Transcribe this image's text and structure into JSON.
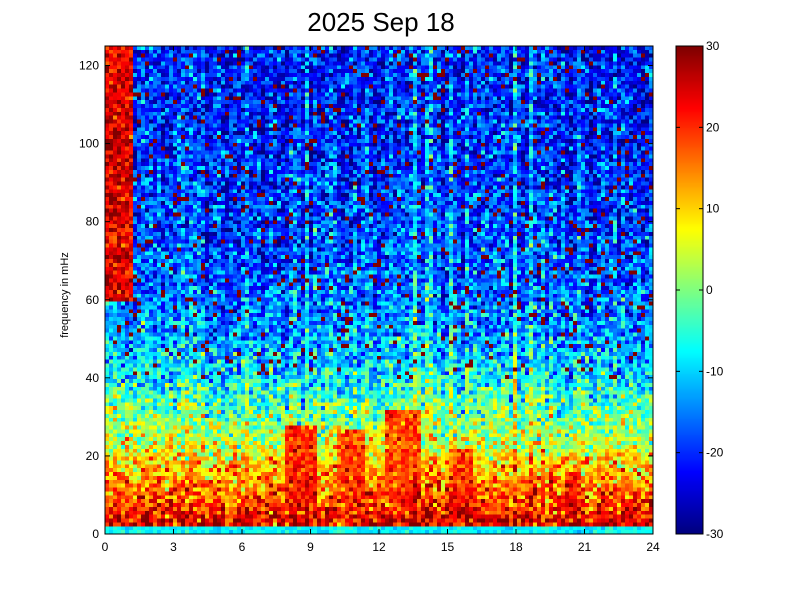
{
  "chart_data": {
    "type": "heatmap",
    "title": "2025 Sep 18",
    "xlabel": "",
    "ylabel": "frequency in mHz",
    "xlim": [
      0,
      24
    ],
    "ylim": [
      0,
      125
    ],
    "x_ticks": [
      "0",
      "3",
      "6",
      "9",
      "12",
      "15",
      "18",
      "21",
      "24"
    ],
    "x_tick_values": [
      0,
      3,
      6,
      9,
      12,
      15,
      18,
      21,
      24
    ],
    "y_ticks": [
      "0",
      "20",
      "40",
      "60",
      "80",
      "100",
      "120"
    ],
    "y_tick_values": [
      0,
      20,
      40,
      60,
      80,
      100,
      120
    ],
    "grid": false,
    "colorbar": {
      "colormap": "jet",
      "range": [
        -30,
        30
      ],
      "ticks": [
        "30",
        "20",
        "10",
        "0",
        "-10",
        "-20",
        "-30"
      ],
      "tick_values": [
        30,
        20,
        10,
        0,
        -10,
        -20,
        -30
      ]
    },
    "grid_resolution": {
      "x_bins": 137,
      "y_bins": 126
    },
    "level_profile": {
      "frequency_mHz": [
        0,
        1.5,
        3,
        5,
        8,
        12,
        16,
        20,
        25,
        30,
        35,
        40,
        45,
        50,
        60,
        70,
        80,
        90,
        100,
        110,
        125
      ],
      "level": [
        -8,
        22,
        24,
        22,
        18,
        16,
        12,
        8,
        3,
        0,
        -4,
        -8,
        -11,
        -13,
        -16,
        -18,
        -19,
        -20,
        -20,
        -21,
        -21
      ]
    },
    "features": [
      {
        "description": "high-power patch",
        "x_range": [
          0,
          1.2
        ],
        "y_range": [
          60,
          125
        ],
        "level": 30
      },
      {
        "description": "burst",
        "x_range": [
          7.8,
          9.2
        ],
        "y_range": [
          8,
          28
        ],
        "level": 26
      },
      {
        "description": "burst",
        "x_range": [
          10.2,
          11.3
        ],
        "y_range": [
          8,
          27
        ],
        "level": 24
      },
      {
        "description": "burst",
        "x_range": [
          12.2,
          13.8
        ],
        "y_range": [
          8,
          32
        ],
        "level": 24
      },
      {
        "description": "burst",
        "x_range": [
          15.2,
          16.2
        ],
        "y_range": [
          5,
          22
        ],
        "level": 24
      },
      {
        "description": "burst",
        "x_range": [
          20.1,
          20.6
        ],
        "y_range": [
          5,
          16
        ],
        "level": 28
      }
    ]
  }
}
